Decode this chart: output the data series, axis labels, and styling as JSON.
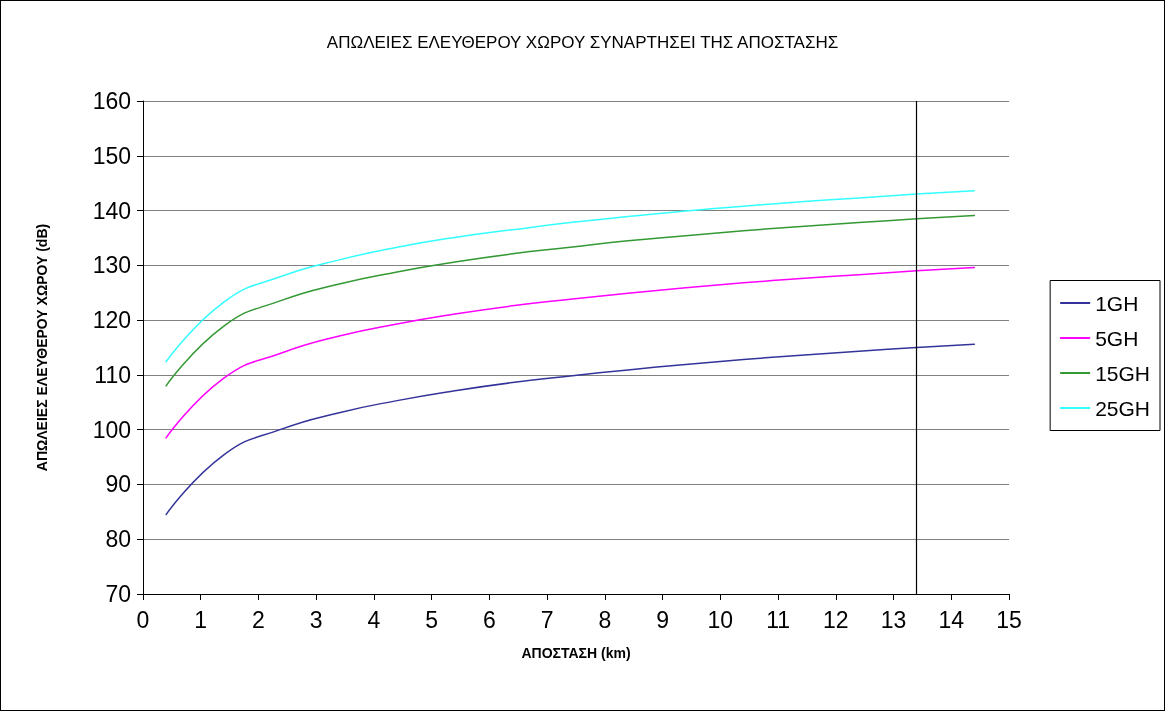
{
  "chart_data": {
    "type": "line",
    "title": "ΑΠΩΛΕΙΕΣ ΕΛΕΥΘΕΡΟΥ ΧΩΡΟΥ ΣΥΝΑΡΤΗΣΕΙ ΤΗΣ ΑΠΟΣΤΑΣΗΣ",
    "xlabel": "ΑΠΟΣΤΑΣΗ (km)",
    "ylabel": "ΑΠΩΛΕΙΕΣ ΕΛΕΥΘΕΡΟΥ ΧΩΡΟΥ (dB)",
    "x": [
      0.4,
      1.4,
      2.4,
      3.4,
      4.4,
      5.4,
      6.4,
      7.4,
      8.4,
      9.4,
      10.4,
      11.4,
      12.4,
      13.4,
      14.4
    ],
    "series": [
      {
        "name": "1GH",
        "color": "#333399",
        "values": [
          84.5,
          95.4,
          100.1,
          103.1,
          105.3,
          107.1,
          108.6,
          109.8,
          110.9,
          111.9,
          112.8,
          113.6,
          114.3,
          115.0,
          115.6
        ]
      },
      {
        "name": "5GH",
        "color": "#ff00ff",
        "values": [
          98.5,
          109.4,
          114.0,
          117.1,
          119.3,
          121.1,
          122.6,
          123.8,
          124.9,
          125.9,
          126.8,
          127.6,
          128.3,
          129.0,
          129.6
        ]
      },
      {
        "name": "15GH",
        "color": "#339933",
        "values": [
          108.0,
          118.9,
          123.6,
          126.6,
          128.8,
          130.6,
          132.1,
          133.3,
          134.5,
          135.4,
          136.3,
          137.1,
          137.8,
          138.5,
          139.1
        ]
      },
      {
        "name": "25GH",
        "color": "#33ffff",
        "values": [
          112.4,
          123.3,
          128.0,
          131.0,
          133.3,
          135.1,
          136.5,
          137.8,
          138.9,
          139.9,
          140.8,
          141.6,
          142.3,
          143.0,
          143.6
        ]
      }
    ],
    "xlim": [
      0,
      15
    ],
    "xticks": [
      0,
      1,
      2,
      3,
      4,
      5,
      6,
      7,
      8,
      9,
      10,
      11,
      12,
      13,
      14,
      15
    ],
    "ylim": [
      70,
      160
    ],
    "yticks": [
      70,
      80,
      90,
      100,
      110,
      120,
      130,
      140,
      150,
      160
    ],
    "ref_lines": [
      {
        "axis": "x",
        "value": 13.4,
        "color": "#000000"
      }
    ],
    "grid": "y",
    "legend": "right",
    "marker": "none",
    "line_style": "solid"
  }
}
